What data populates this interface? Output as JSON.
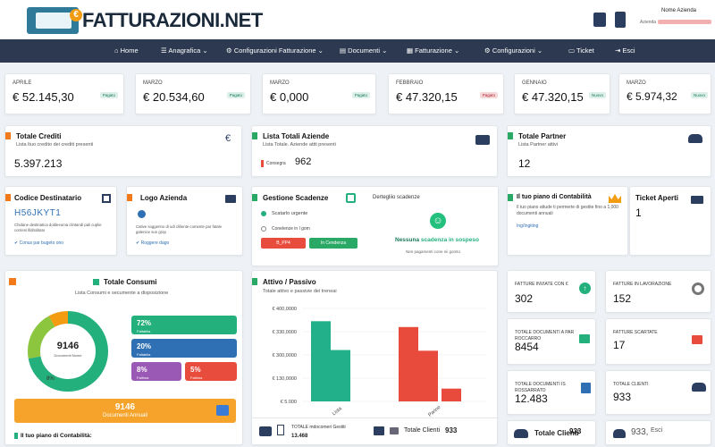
{
  "brand": {
    "name": "FATTURAZIONI.NET",
    "euro": "€"
  },
  "user": {
    "name": "Nome Azienda",
    "company_label": "Azienda"
  },
  "nav": [
    {
      "label": "Home"
    },
    {
      "label": "Anagrafica"
    },
    {
      "label": "Configurazioni Fatturazione"
    },
    {
      "label": "Documenti"
    },
    {
      "label": "Fatturazione"
    },
    {
      "label": "Configurazioni"
    },
    {
      "label": "Ticket"
    },
    {
      "label": "Esci"
    }
  ],
  "months": [
    {
      "label": "APRILE",
      "value": "€ 52.145,30",
      "badge": "Pagato",
      "badge_color": "#1a7a5a"
    },
    {
      "label": "MARZO",
      "value": "€ 20.534,60",
      "badge": "Pagato",
      "badge_color": "#1a7a5a"
    },
    {
      "label": "MARZO",
      "value": "€ 0,000",
      "badge": "Pagato",
      "badge_color": "#1a7a5a"
    },
    {
      "label": "FEBBRAIO",
      "value": "€ 47.320,15",
      "badge": "Pagato",
      "badge_color": "#b22233"
    },
    {
      "label": "GENNAIO",
      "value": "€ 47.320,15",
      "badge": "Nuovo",
      "badge_color": "#1a7a5a"
    },
    {
      "label": "MARZO",
      "value": "€ 5.974,32",
      "badge": "Nuovo",
      "badge_color": "#1a7a5a"
    }
  ],
  "crediti": {
    "title": "Totale Crediti",
    "sub": "Lista ltuo credito dei crediti presenti",
    "value": "5.397.213"
  },
  "aziende": {
    "title": "Lista Totali Aziende",
    "sub": "Lista Totale. Aziende attti presenti",
    "consegna_label": "Consegra",
    "consegna_value": "962"
  },
  "partner": {
    "title": "Totale Partner",
    "sub": "Lista Partner attivi",
    "value": "12"
  },
  "destinatario": {
    "title": "Codice Destinatario",
    "code": "H56JKYT1",
    "desc": "Chidane destinatica doldeeuma clintandi pali cuplie corrieni lllditolitato",
    "link": "Conus par bugeto ono"
  },
  "logo_azienda": {
    "title": "Logo Azienda",
    "desc": "Cative soggerino di udi cliliente comente par fatale galenice sun grop",
    "link": "Roggere dago"
  },
  "scadenze": {
    "title": "Gestione Scadenze",
    "detail_title": "Dertegliio scadenze",
    "item1": "Scatarlo urgente",
    "item2": "Conelenze in l gom",
    "btn1": "B_PP4",
    "btn2": "In Cendenza",
    "empty_a": "Nessuna",
    "empty_b": "scadenza in sospeso",
    "empty_sub": "Nen pagamenti cone nii gomto"
  },
  "piano": {
    "title": "Il tuo piano di Contabilità",
    "desc": "Il tuo piano attude ti permerte di gestite fino a 1,000 documenti annuali",
    "link": "Ing/Ingiting"
  },
  "ticket": {
    "title": "Ticket Aperti",
    "value": "1"
  },
  "consumi": {
    "title": "Totale Consumi",
    "sub": "Lista Consumi e secumente a disposizione",
    "donut_value": "9146",
    "donut_label": "Documenti Nome",
    "pct_label": "8%",
    "tiles": [
      {
        "value": "72%",
        "label": "Fattabila",
        "color": "#23b07d"
      },
      {
        "value": "20%",
        "label": "Fattabila",
        "color": "#2f6fb3"
      },
      {
        "value": "8%",
        "label": "Fattima",
        "color": "#9b59b6"
      },
      {
        "value": "5%",
        "label": "Fattima",
        "color": "#e74c3c"
      }
    ],
    "annual_value": "9146",
    "annual_label": "Documenti Annuali",
    "footer": "Il tuo piano di Contabilità:"
  },
  "chart_title": "Attivo / Passivo",
  "chart_sub": "Totale attivo e passivie dei treneai",
  "chart_data": {
    "type": "bar",
    "categories": [
      "Lista",
      "Parine"
    ],
    "series": [
      {
        "values": [
          345000,
          221000
        ],
        "color": "#21b08a"
      },
      {
        "values": [
          320000,
          218000
        ],
        "color": "#e84b3c"
      },
      {
        "values": [
          90000,
          55000
        ],
        "color": "#e84b3c"
      }
    ],
    "yticks": [
      "€ 400,0000",
      "€ 330,0000",
      "€ 300,0000",
      "€ 130,0000",
      "€ 5.000"
    ],
    "ylim": [
      0,
      400000
    ]
  },
  "chart_footer": {
    "label1": "TOTALE mdocomeri Gestiti",
    "value1": "13.468",
    "label2": "Totale Clienti",
    "value2": "933"
  },
  "kpis": [
    {
      "label": "FATTURE INVIATE con €",
      "value": "302",
      "icon_color": "#23b07d"
    },
    {
      "label": "FATTURE IN LAVORAZIONE",
      "value": "152",
      "icon_color": "#666"
    },
    {
      "label": "TOTALE DOCUMENTI A PAR ROCCARRO",
      "value": "8454",
      "icon_color": "#23b07d"
    },
    {
      "label": "FATTURE SCARTATE",
      "value": "17",
      "icon_color": "#e74c3c"
    },
    {
      "label": "TOTALE DOCUMENTI IS ROSSARRATO",
      "value": "12.483",
      "icon_color": "#2f6fb3"
    },
    {
      "label": "TOTALE CLIENTI",
      "value": "933",
      "icon_color": "#2c3e60"
    }
  ],
  "bottom": {
    "clienti_label": "Totale Clienti",
    "clienti_value": "933",
    "esci_value": "933,",
    "esci_label": "Esci"
  }
}
